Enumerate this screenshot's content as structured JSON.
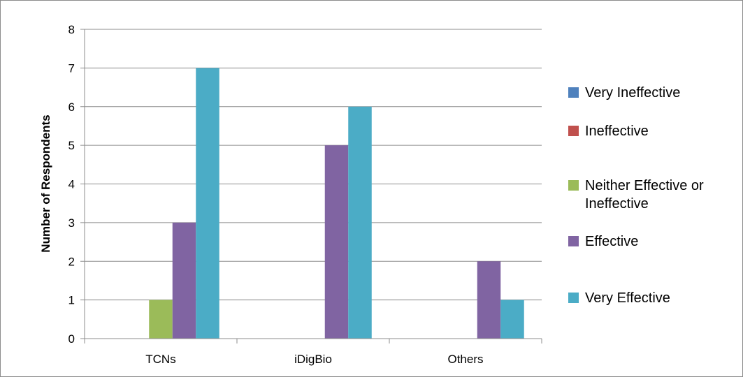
{
  "chart_data": {
    "type": "bar",
    "title": "",
    "xlabel": "",
    "ylabel": "Number of Respondents",
    "categories": [
      "TCNs",
      "iDigBio",
      "Others"
    ],
    "ylim": [
      0,
      8
    ],
    "yticks": [
      0,
      1,
      2,
      3,
      4,
      5,
      6,
      7,
      8
    ],
    "grid": true,
    "legend_position": "right",
    "series": [
      {
        "name": "Very Ineffective",
        "color": "#4f81bd",
        "values": [
          0,
          0,
          0
        ]
      },
      {
        "name": "Ineffective",
        "color": "#c0504d",
        "values": [
          0,
          0,
          0
        ]
      },
      {
        "name": "Neither Effective or Ineffective",
        "color": "#9bbb59",
        "values": [
          1,
          0,
          0
        ]
      },
      {
        "name": "Effective",
        "color": "#8064a2",
        "values": [
          3,
          5,
          2
        ]
      },
      {
        "name": "Very Effective",
        "color": "#4bacc6",
        "values": [
          7,
          6,
          1
        ]
      }
    ]
  }
}
